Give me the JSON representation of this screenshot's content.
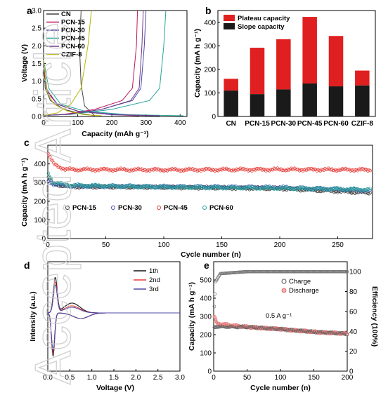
{
  "watermark": "Accepted Article",
  "chart_data": [
    {
      "panel": "a",
      "type": "line",
      "xlabel": "Capacity (mAh g⁻¹)",
      "ylabel": "Voltage (V)",
      "xlim": [
        0,
        420
      ],
      "ylim": [
        0,
        3.0
      ],
      "xticks": [
        0,
        100,
        200,
        300,
        400
      ],
      "yticks": [
        0.0,
        0.5,
        1.0,
        1.5,
        2.0,
        2.5,
        3.0
      ],
      "legend_position": "top-left",
      "series": [
        {
          "name": "CN",
          "color": "#444444",
          "discharge": [
            [
              0,
              1.6
            ],
            [
              5,
              0.8
            ],
            [
              20,
              0.45
            ],
            [
              60,
              0.2
            ],
            [
              110,
              0.08
            ],
            [
              150,
              0.02
            ]
          ],
          "charge": [
            [
              150,
              0.02
            ],
            [
              120,
              0.3
            ],
            [
              110,
              0.9
            ],
            [
              105,
              2.0
            ],
            [
              110,
              3.0
            ]
          ]
        },
        {
          "name": "PCN-15",
          "color": "#c2185b",
          "discharge": [
            [
              0,
              1.4
            ],
            [
              10,
              0.7
            ],
            [
              40,
              0.35
            ],
            [
              100,
              0.15
            ],
            [
              200,
              0.05
            ],
            [
              280,
              0.02
            ]
          ],
          "charge": [
            [
              0,
              0.03
            ],
            [
              60,
              0.06
            ],
            [
              150,
              0.2
            ],
            [
              230,
              0.45
            ],
            [
              260,
              0.8
            ],
            [
              272,
              2.0
            ],
            [
              275,
              3.0
            ]
          ]
        },
        {
          "name": "PCN-30",
          "color": "#4e49a8",
          "discharge": [
            [
              0,
              1.5
            ],
            [
              10,
              0.75
            ],
            [
              40,
              0.35
            ],
            [
              100,
              0.15
            ],
            [
              200,
              0.05
            ],
            [
              320,
              0.02
            ]
          ],
          "charge": [
            [
              0,
              0.03
            ],
            [
              70,
              0.06
            ],
            [
              170,
              0.2
            ],
            [
              260,
              0.45
            ],
            [
              285,
              0.8
            ],
            [
              295,
              2.0
            ],
            [
              300,
              3.0
            ]
          ]
        },
        {
          "name": "PCN-45",
          "color": "#26a69a",
          "discharge": [
            [
              0,
              1.6
            ],
            [
              15,
              0.8
            ],
            [
              50,
              0.35
            ],
            [
              120,
              0.15
            ],
            [
              250,
              0.05
            ],
            [
              410,
              0.02
            ]
          ],
          "charge": [
            [
              0,
              0.03
            ],
            [
              80,
              0.06
            ],
            [
              200,
              0.2
            ],
            [
              310,
              0.45
            ],
            [
              340,
              0.8
            ],
            [
              352,
              2.0
            ],
            [
              358,
              3.0
            ]
          ]
        },
        {
          "name": "PCN-60",
          "color": "#6d3a8c",
          "discharge": [
            [
              0,
              1.5
            ],
            [
              10,
              0.75
            ],
            [
              40,
              0.35
            ],
            [
              100,
              0.15
            ],
            [
              220,
              0.05
            ],
            [
              340,
              0.02
            ]
          ],
          "charge": [
            [
              0,
              0.03
            ],
            [
              75,
              0.06
            ],
            [
              170,
              0.2
            ],
            [
              255,
              0.45
            ],
            [
              280,
              0.8
            ],
            [
              288,
              2.0
            ],
            [
              292,
              3.0
            ]
          ]
        },
        {
          "name": "CZIF-8",
          "color": "#b8b500",
          "discharge": [
            [
              0,
              1.6
            ],
            [
              10,
              0.7
            ],
            [
              30,
              0.35
            ],
            [
              70,
              0.15
            ],
            [
              120,
              0.05
            ],
            [
              170,
              0.02
            ]
          ],
          "charge": [
            [
              0,
              0.03
            ],
            [
              40,
              0.1
            ],
            [
              80,
              0.35
            ],
            [
              110,
              0.8
            ],
            [
              130,
              2.0
            ],
            [
              140,
              3.0
            ]
          ]
        }
      ]
    },
    {
      "panel": "b",
      "type": "bar",
      "stacked": true,
      "ylabel": "Capacity (mA h g⁻¹)",
      "ylim": [
        0,
        450
      ],
      "yticks": [
        0,
        100,
        200,
        300,
        400
      ],
      "categories": [
        "CN",
        "PCN-15",
        "PCN-30",
        "PCN-45",
        "PCN-60",
        "CZIF-8"
      ],
      "legend_position": "top-left",
      "series": [
        {
          "name": "Slope capacity",
          "color": "#1a1a1a",
          "values": [
            110,
            95,
            115,
            140,
            128,
            132
          ]
        },
        {
          "name": "Plateau capacity",
          "color": "#e02020",
          "values": [
            50,
            197,
            213,
            283,
            214,
            63
          ]
        }
      ]
    },
    {
      "panel": "c",
      "type": "scatter",
      "xlabel": "Cycle number (n)",
      "ylabel": "Capacity (mA h g⁻¹)",
      "xlim": [
        0,
        280
      ],
      "ylim": [
        0,
        500
      ],
      "xticks": [
        0,
        50,
        100,
        150,
        200,
        250
      ],
      "yticks": [
        0,
        100,
        200,
        300,
        400
      ],
      "legend_position": "middle-left",
      "series": [
        {
          "name": "PCN-15",
          "color": "#333333",
          "start": [
            0,
            330
          ],
          "trend": [
            [
              5,
              290
            ],
            [
              20,
              278
            ],
            [
              100,
              275
            ],
            [
              200,
              268
            ],
            [
              278,
              245
            ]
          ]
        },
        {
          "name": "PCN-30",
          "color": "#3949ab",
          "start": [
            0,
            310
          ],
          "trend": [
            [
              5,
              292
            ],
            [
              20,
              282
            ],
            [
              100,
              278
            ],
            [
              200,
              274
            ],
            [
              278,
              258
            ]
          ]
        },
        {
          "name": "PCN-45",
          "color": "#e53935",
          "start": [
            0,
            455
          ],
          "trend": [
            [
              5,
              400
            ],
            [
              15,
              370
            ],
            [
              100,
              368
            ],
            [
              200,
              370
            ],
            [
              278,
              368
            ]
          ]
        },
        {
          "name": "PCN-60",
          "color": "#26a69a",
          "start": [
            0,
            350
          ],
          "trend": [
            [
              5,
              300
            ],
            [
              20,
              285
            ],
            [
              100,
              276
            ],
            [
              200,
              270
            ],
            [
              278,
              262
            ]
          ]
        }
      ]
    },
    {
      "panel": "d",
      "type": "line",
      "xlabel": "Voltage (V)",
      "ylabel": "Intensity (a.u.)",
      "xlim": [
        0,
        3.0
      ],
      "xticks": [
        0.0,
        0.5,
        1.0,
        1.5,
        2.0,
        2.5,
        3.0
      ],
      "legend_position": "top-right",
      "series": [
        {
          "name": "1th",
          "color": "#111111"
        },
        {
          "name": "2nd",
          "color": "#e53935"
        },
        {
          "name": "3rd",
          "color": "#4e49a8"
        }
      ]
    },
    {
      "panel": "e",
      "type": "scatter",
      "xlabel": "Cycle number (n)",
      "ylabel": "Capacity (mA h g⁻¹)",
      "ylabel_right": "Efficiency (100%)",
      "xlim": [
        0,
        200
      ],
      "ylim": [
        0,
        600
      ],
      "ylim_right": [
        0,
        110
      ],
      "xticks": [
        0,
        50,
        100,
        150,
        200
      ],
      "yticks": [
        0,
        100,
        200,
        300,
        400,
        500
      ],
      "yticks_right": [
        0,
        20,
        40,
        60,
        80,
        100
      ],
      "annotation": "0.5 A g⁻¹",
      "legend_position": "top-right",
      "series": [
        {
          "name": "Charge",
          "color": "#555555",
          "trend": [
            [
              1,
              240
            ],
            [
              5,
              245
            ],
            [
              50,
              242
            ],
            [
              100,
              230
            ],
            [
              150,
              215
            ],
            [
              200,
              205
            ]
          ]
        },
        {
          "name": "Discharge",
          "color": "#e07070",
          "trend": [
            [
              1,
              300
            ],
            [
              5,
              260
            ],
            [
              50,
              242
            ],
            [
              100,
              230
            ],
            [
              150,
              215
            ],
            [
              200,
              205
            ]
          ]
        },
        {
          "name": "Efficiency",
          "color": "#777777",
          "trend": [
            [
              1,
              65
            ],
            [
              3,
              90
            ],
            [
              10,
              98
            ],
            [
              50,
              100
            ],
            [
              200,
              100
            ]
          ]
        }
      ]
    }
  ]
}
